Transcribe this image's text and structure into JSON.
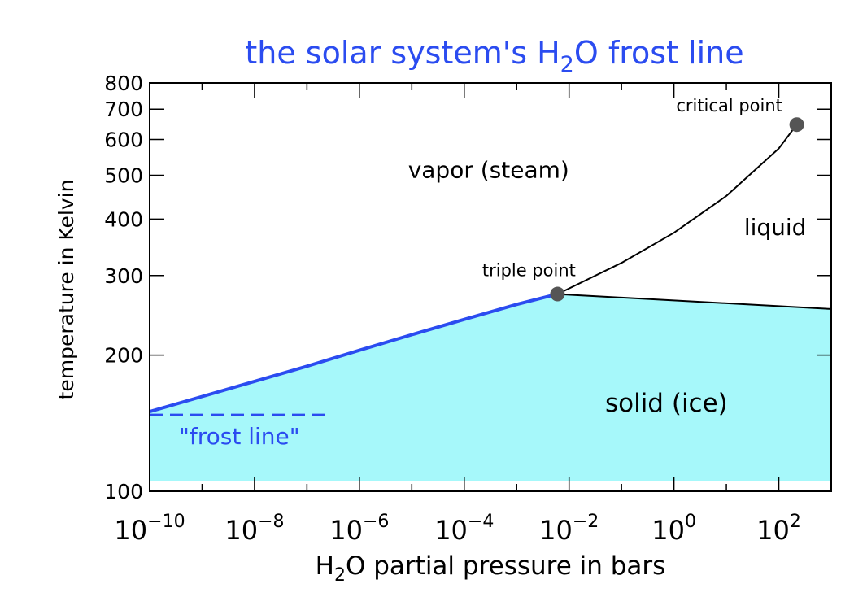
{
  "chart_data": {
    "type": "line",
    "title": {
      "prefix": "the solar system's H",
      "sub": "2",
      "suffix": "O frost line"
    },
    "xlabel": {
      "prefix": "H",
      "sub": "2",
      "suffix": "O partial pressure in bars"
    },
    "ylabel": "temperature in Kelvin",
    "x_scale": "log",
    "y_scale": "log",
    "xlim": [
      1e-10,
      1000
    ],
    "ylim": [
      100,
      800
    ],
    "x_ticks": [
      {
        "base": "10",
        "exp": "−10",
        "value": 1e-10
      },
      {
        "base": "10",
        "exp": "−8",
        "value": 1e-08
      },
      {
        "base": "10",
        "exp": "−6",
        "value": 1e-06
      },
      {
        "base": "10",
        "exp": "−4",
        "value": 0.0001
      },
      {
        "base": "10",
        "exp": "−2",
        "value": 0.01
      },
      {
        "base": "10",
        "exp": "0",
        "value": 1
      },
      {
        "base": "10",
        "exp": "2",
        "value": 100
      }
    ],
    "y_ticks": [
      {
        "label": "100",
        "value": 100
      },
      {
        "label": "200",
        "value": 200
      },
      {
        "label": "300",
        "value": 300
      },
      {
        "label": "400",
        "value": 400
      },
      {
        "label": "500",
        "value": 500
      },
      {
        "label": "600",
        "value": 600
      },
      {
        "label": "700",
        "value": 700
      },
      {
        "label": "800",
        "value": 800
      }
    ],
    "series": [
      {
        "role": "sublimation-curve",
        "x": [
          1e-10,
          1e-09,
          1e-08,
          1e-07,
          1e-06,
          1e-05,
          0.0001,
          0.001,
          0.006
        ],
        "y": [
          150,
          162,
          175,
          189,
          205,
          222,
          240,
          259,
          273
        ]
      },
      {
        "role": "boiling-curve",
        "x": [
          0.006,
          0.1,
          1,
          10,
          100,
          220
        ],
        "y": [
          273,
          320,
          373,
          450,
          573,
          647
        ]
      },
      {
        "role": "melting-curve",
        "x": [
          0.006,
          1000
        ],
        "y": [
          273,
          253
        ]
      }
    ],
    "points": [
      {
        "label": "triple point",
        "x": 0.006,
        "y": 273
      },
      {
        "label": "critical point",
        "x": 220,
        "y": 647
      }
    ],
    "frost_line": {
      "label": "\"frost line\"",
      "y": 150,
      "x": [
        1e-10,
        3e-07
      ]
    },
    "regions": [
      {
        "label": "vapor (steam)",
        "x": 0.0001,
        "y": 510
      },
      {
        "label": "liquid",
        "x": 50,
        "y": 330
      },
      {
        "label": "solid (ice)",
        "x": 3,
        "y": 155
      }
    ],
    "colors": {
      "curve_blue": "#2b4cf0",
      "ice_fill": "#a6f8fa",
      "point": "#555555",
      "text_black": "#000000"
    }
  }
}
